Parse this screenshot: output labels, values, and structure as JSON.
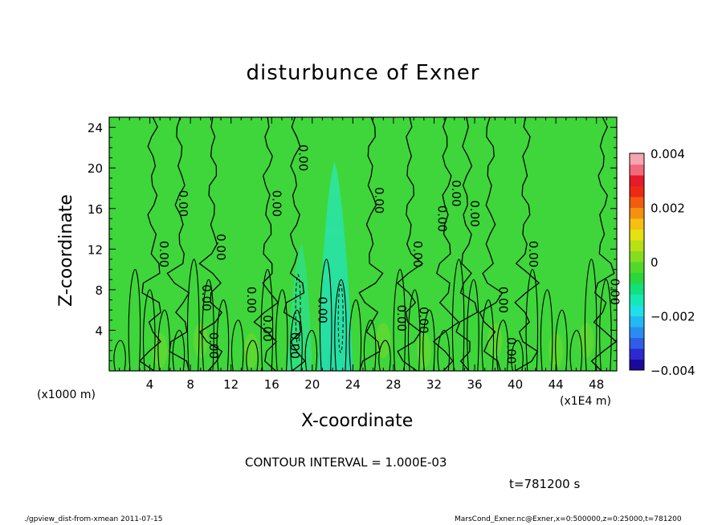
{
  "chart_data": {
    "type": "heatmap",
    "title": "disturbunce of Exner",
    "xlabel": "X-coordinate",
    "ylabel": "Z-coordinate",
    "x_unit_label": "(x1000 m)",
    "x_scale_label": "(x1E4 m)",
    "xlim": [
      0,
      50
    ],
    "ylim": [
      0,
      25
    ],
    "xticks": [
      4,
      8,
      12,
      16,
      20,
      24,
      28,
      32,
      36,
      40,
      44,
      48
    ],
    "yticks": [
      4,
      8,
      12,
      16,
      20,
      24
    ],
    "colorbar": {
      "min": -0.004,
      "max": 0.004,
      "labels": [
        "0.004",
        "0.002",
        "0",
        "−0.002",
        "−0.004"
      ],
      "colors": [
        "#1a0a99",
        "#2a2ad0",
        "#2e5ee8",
        "#2a8cf0",
        "#22b8f2",
        "#1ee0e6",
        "#16e8b4",
        "#12e07a",
        "#2ad63c",
        "#52d82a",
        "#86dc1e",
        "#b8e014",
        "#e4e212",
        "#f6c010",
        "#f69010",
        "#f25c10",
        "#ec2a14",
        "#e61a2a",
        "#f26a7a",
        "#f6a6b0"
      ]
    },
    "contour_labels": [
      "0.00"
    ],
    "contour_interval_text": "CONTOUR INTERVAL = 1.000E-03",
    "time_text": "t=781200 s"
  },
  "footer": {
    "left": "./gpview_dist-from-xmean  2011-07-15",
    "right": "MarsCond_Exner.nc@Exner,x=0:500000,z=0:25000,t=781200"
  }
}
